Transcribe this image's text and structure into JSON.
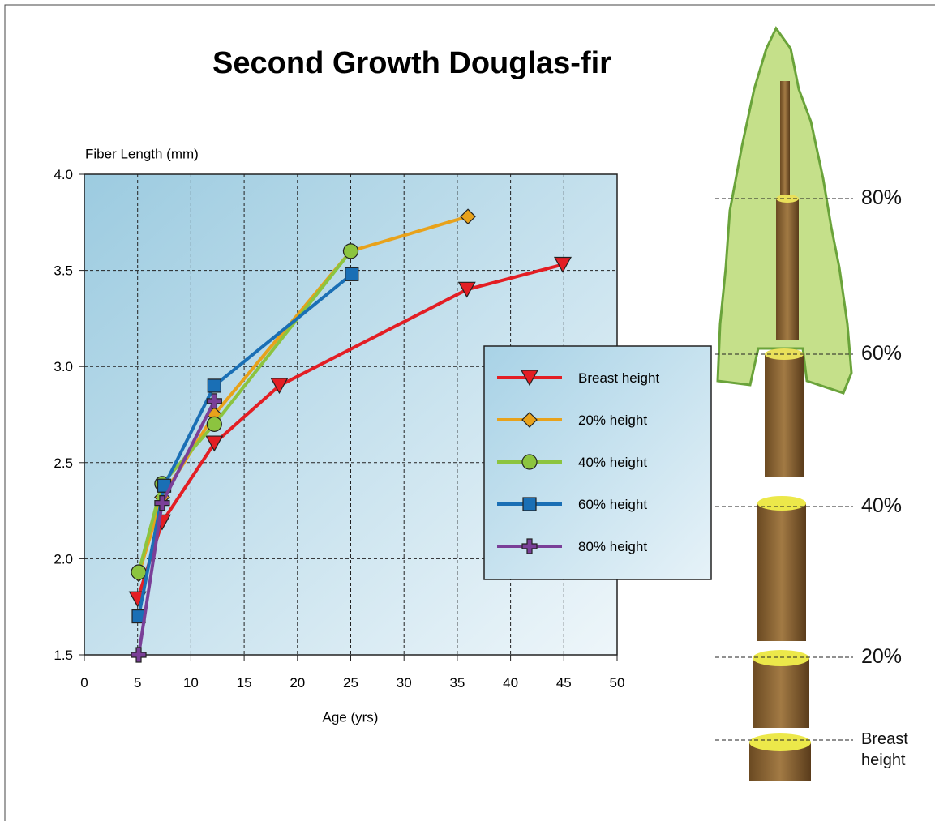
{
  "chart_data": {
    "type": "line",
    "title": "Second Growth Douglas-fir",
    "y_label": "Fiber Length (mm)",
    "x_label": "Age (yrs)",
    "xlim": [
      0,
      50
    ],
    "xticks": [
      0,
      5,
      10,
      15,
      20,
      25,
      30,
      35,
      40,
      45,
      50
    ],
    "ylim": [
      1.5,
      4.0
    ],
    "yticks": [
      1.5,
      {
        "value": 2,
        "label": "2.0"
      },
      2.5,
      {
        "value": 3,
        "label": "3.0"
      },
      3.5,
      {
        "value": 4,
        "label": "4.0"
      }
    ],
    "grid": true,
    "legend": "right",
    "series": [
      {
        "name": "Breast height",
        "color": "#e31e24",
        "marker": "triangle-down",
        "x": [
          5,
          7.3,
          12.2,
          18.3,
          35.9,
          44.9
        ],
        "values": [
          1.79,
          2.19,
          2.6,
          2.9,
          3.4,
          3.53
        ]
      },
      {
        "name": "20% height",
        "color": "#e8a21b",
        "marker": "diamond",
        "x": [
          5.1,
          7.3,
          12.2,
          25,
          36
        ],
        "values": [
          1.92,
          2.32,
          2.75,
          3.6,
          3.78
        ]
      },
      {
        "name": "40% height",
        "color": "#8cc43f",
        "marker": "circle",
        "x": [
          5.1,
          7.3,
          12.2,
          25
        ],
        "values": [
          1.93,
          2.39,
          2.7,
          3.6
        ]
      },
      {
        "name": "60% height",
        "color": "#1a6fb5",
        "marker": "square",
        "x": [
          5.1,
          7.5,
          12.2,
          25.1
        ],
        "values": [
          1.7,
          2.38,
          2.9,
          3.48
        ]
      },
      {
        "name": "80% height",
        "color": "#7a3f98",
        "marker": "plus",
        "x": [
          5.1,
          7.3,
          12.2
        ],
        "values": [
          1.5,
          2.29,
          2.82
        ]
      }
    ],
    "annotations": [
      "80%",
      "60%",
      "40%",
      "20%",
      "Breast height"
    ]
  }
}
